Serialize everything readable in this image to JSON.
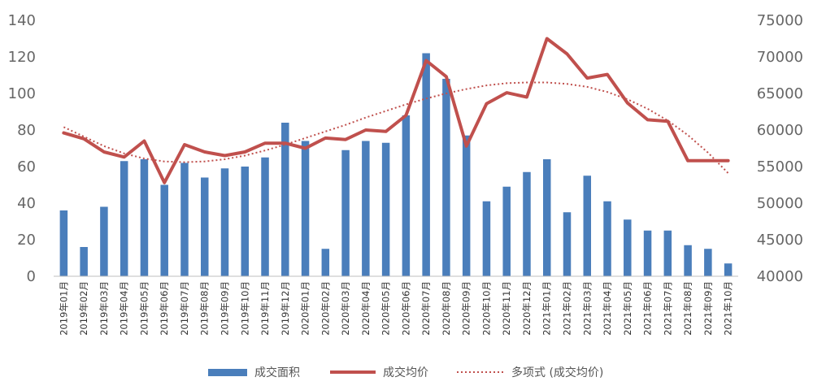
{
  "chart_data": {
    "type": "bar+line",
    "categories": [
      "2019年01月",
      "2019年02月",
      "2019年03月",
      "2019年04月",
      "2019年05月",
      "2019年06月",
      "2019年07月",
      "2019年08月",
      "2019年09月",
      "2019年10月",
      "2019年11月",
      "2019年12月",
      "2020年01月",
      "2020年02月",
      "2020年03月",
      "2020年04月",
      "2020年05月",
      "2020年06月",
      "2020年07月",
      "2020年08月",
      "2020年09月",
      "2020年10月",
      "2020年11月",
      "2020年12月",
      "2021年01月",
      "2021年02月",
      "2021年03月",
      "2021年04月",
      "2021年05月",
      "2021年06月",
      "2021年07月",
      "2021年08月",
      "2021年09月",
      "2021年10月"
    ],
    "series": [
      {
        "name": "成交面积",
        "type": "bar",
        "axis": "left",
        "color": "#4a7ebb",
        "values": [
          36,
          16,
          38,
          63,
          64,
          50,
          62,
          54,
          59,
          60,
          65,
          84,
          74,
          15,
          69,
          74,
          73,
          88,
          122,
          108,
          77,
          41,
          49,
          57,
          64,
          35,
          55,
          41,
          31,
          25,
          25,
          17,
          15,
          7
        ]
      },
      {
        "name": "成交均价",
        "type": "line",
        "axis": "right",
        "color": "#c0504d",
        "values": [
          59600,
          58800,
          57000,
          56300,
          58500,
          52800,
          58000,
          57000,
          56500,
          57000,
          58200,
          58200,
          57500,
          58900,
          58700,
          60000,
          59800,
          62000,
          69500,
          67300,
          57800,
          63600,
          65100,
          64500,
          72500,
          70400,
          67100,
          67600,
          63700,
          61400,
          61200,
          55800,
          55800,
          55800
        ]
      },
      {
        "name": "多项式 (成交均价)",
        "type": "trendline",
        "axis": "right",
        "color": "#c0504d",
        "values": [
          60400,
          59100,
          57800,
          56800,
          56100,
          55700,
          55600,
          55700,
          56000,
          56500,
          57200,
          58000,
          58900,
          59800,
          60700,
          61700,
          62600,
          63500,
          64300,
          65000,
          65600,
          66100,
          66400,
          66500,
          66500,
          66300,
          65900,
          65200,
          64200,
          62900,
          61300,
          59300,
          56900,
          54100
        ]
      }
    ],
    "ylim_left": [
      0,
      140
    ],
    "yticks_left": [
      "0",
      "20",
      "40",
      "60",
      "80",
      "100",
      "120",
      "140"
    ],
    "ylim_right": [
      40000,
      75000
    ],
    "yticks_right": [
      "40000",
      "45000",
      "50000",
      "55000",
      "60000",
      "65000",
      "70000",
      "75000"
    ],
    "grid": false,
    "legend_position": "bottom"
  }
}
